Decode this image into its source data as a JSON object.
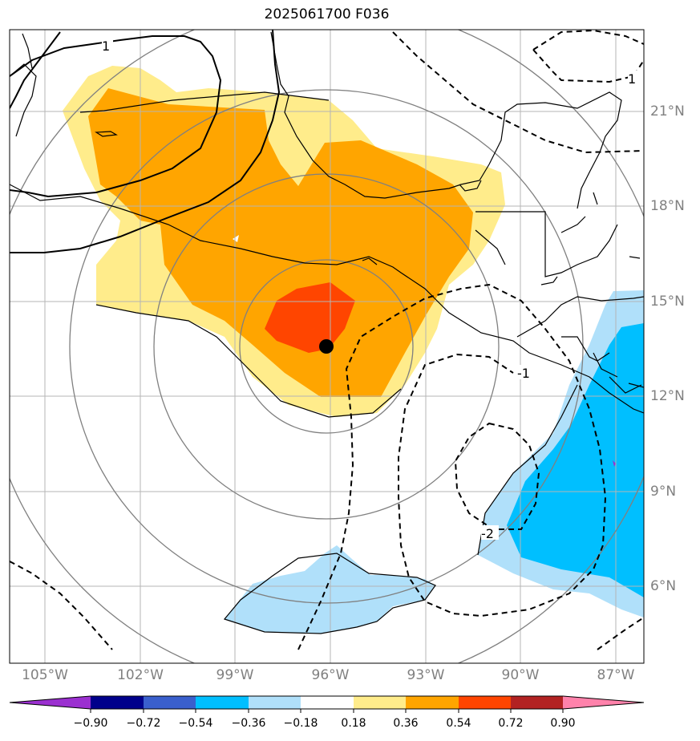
{
  "title": "2025061700 F036",
  "map": {
    "lon_labels": [
      "105°W",
      "102°W",
      "99°W",
      "96°W",
      "93°W",
      "90°W",
      "87°W"
    ],
    "lat_labels": [
      "21°N",
      "18°N",
      "15°N",
      "12°N",
      "9°N",
      "6°N"
    ],
    "center_marker": {
      "lon": -96,
      "lat": 13.5
    },
    "contour_labels": [
      "1",
      "1",
      "-1",
      "-2"
    ]
  },
  "colorbar": {
    "ticks": [
      "−0.90",
      "−0.72",
      "−0.54",
      "−0.36",
      "−0.18",
      "0.18",
      "0.36",
      "0.54",
      "0.72",
      "0.90"
    ],
    "colors": [
      "#9b30d0",
      "#00008b",
      "#3a5fcd",
      "#00bfff",
      "#b0e0fa",
      "#ffffff",
      "#ffec8b",
      "#ffa500",
      "#ff4500",
      "#b22222",
      "#ff82ab"
    ]
  },
  "colors": {
    "grid": "#808080",
    "positive_low": "#ffec8b",
    "positive_mid": "#ffa500",
    "positive_high": "#ff4500",
    "negative_low": "#b0e0fa",
    "negative_mid": "#00bfff"
  }
}
